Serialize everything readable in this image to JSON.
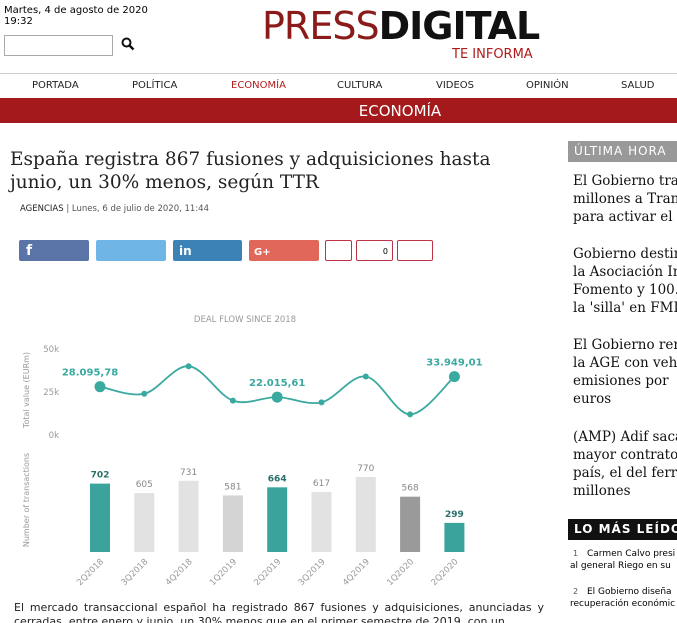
{
  "header": {
    "date": "Martes, 4 de agosto de 2020",
    "time": "19:32",
    "logo_a": "PRESS",
    "logo_b": "DIGITAL",
    "tagline": "TE INFORMA"
  },
  "nav": [
    "PORTADA",
    "POLÍTICA",
    "ECONOMÍA",
    "CULTURA",
    "VIDEOS",
    "OPINIÓN",
    "SALUD"
  ],
  "section": "ECONOMÍA",
  "article": {
    "title": "España registra 867 fusiones y adquisiciones hasta junio, un 30% menos, según TTR",
    "source": "AGENCIAS",
    "byline": " | Lunes, 6 de julio de 2020, 11:44",
    "comments": "0",
    "body": "El mercado transaccional español ha registrado 867 fusiones y adquisiciones, anunciadas y cerradas, entre enero y junio, un 30% menos que en el primer semestre de 2019, con un"
  },
  "chart_data": {
    "type": "line-bar",
    "title": "DEAL FLOW SINCE 2018",
    "y_label": "Total value (EURm)",
    "y2_label": "Number of transactions",
    "categories": [
      "2Q2018",
      "3Q2018",
      "4Q2018",
      "1Q2019",
      "2Q2019",
      "3Q2019",
      "4Q2019",
      "1Q2020",
      "2Q2020"
    ],
    "ylim": [
      0,
      50000
    ],
    "yticks": [
      {
        "value": 0,
        "label": "0k"
      },
      {
        "value": 25000,
        "label": "25k"
      },
      {
        "value": 50000,
        "label": "50k"
      }
    ],
    "series": [
      {
        "name": "Total value (EURm)",
        "color": "#3aa9a0",
        "values": [
          28095.78,
          24000,
          40000,
          20000,
          22015.61,
          19000,
          34000,
          12000,
          33949.01
        ],
        "value_labels": [
          "28.095,78",
          null,
          null,
          null,
          "22.015,61",
          null,
          null,
          null,
          "33.949,01"
        ]
      },
      {
        "name": "Number of transactions",
        "colors": [
          "#3aa39b",
          "#e2e2e2",
          "#e2e2e2",
          "#d4d4d4",
          "#3aa39b",
          "#e2e2e2",
          "#e2e2e2",
          "#9a9a9a",
          "#3aa39b"
        ],
        "values": [
          702,
          605,
          731,
          581,
          664,
          617,
          770,
          568,
          299
        ]
      }
    ]
  },
  "sidebar": {
    "latest_title": "ÚLTIMA HORA",
    "latest": [
      [
        "El Gobierno tran",
        "millones a Tran",
        "para activar el"
      ],
      [
        "Gobierno destin",
        "la Asociación In",
        "Fomento y 100.",
        "la 'silla' en FMI"
      ],
      [
        "El Gobierno ren",
        "la AGE con veh",
        "emisiones por",
        "euros"
      ],
      [
        "(AMP) Adif saca",
        "mayor contrato",
        "país, el del ferr",
        "millones"
      ]
    ],
    "most_read_title": "LO MÁS LEÍDO",
    "most_read": [
      {
        "n": "1",
        "lines": [
          "Carmen Calvo presi",
          "al general Riego en su"
        ]
      },
      {
        "n": "2",
        "lines": [
          "El Gobierno diseña",
          "recuperación económic"
        ]
      }
    ]
  }
}
